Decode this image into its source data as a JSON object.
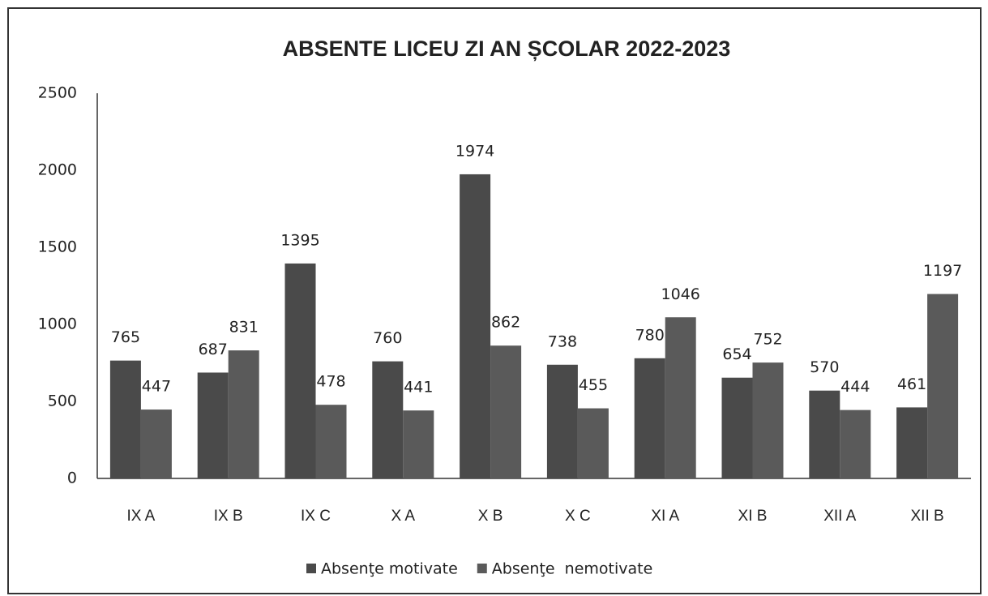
{
  "chart_data": {
    "type": "bar",
    "title": "ABSENTE LICEU ZI AN ȘCOLAR 2022-2023",
    "categories": [
      "IX A",
      "IX B",
      "IX C",
      "X A",
      "X B",
      "X C",
      "XI A",
      "XI B",
      "XII A",
      "XII B"
    ],
    "series": [
      {
        "name": "Absenţe motivate",
        "color": "#4a4a4a",
        "values": [
          765,
          687,
          1395,
          760,
          1974,
          738,
          780,
          654,
          570,
          461
        ]
      },
      {
        "name": "Absenţe  nemotivate",
        "color": "#5a5a5a",
        "values": [
          447,
          831,
          478,
          441,
          862,
          455,
          1046,
          752,
          444,
          1197
        ]
      }
    ],
    "ylim": [
      0,
      2500
    ],
    "yticks": [
      0,
      500,
      1000,
      1500,
      2000,
      2500
    ],
    "grid": false,
    "legend": "bottom"
  }
}
